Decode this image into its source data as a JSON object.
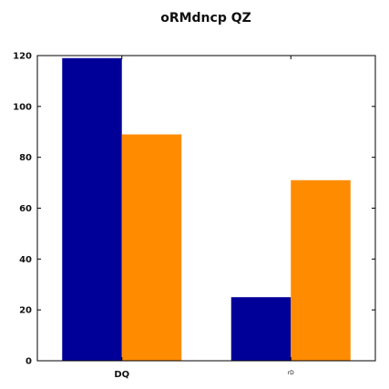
{
  "chart_data": {
    "type": "bar",
    "title": "oRMdncp QZ",
    "xlabel": "",
    "ylabel": "",
    "categories": [
      "DQ",
      "rD"
    ],
    "series": [
      {
        "values": [
          119,
          25
        ]
      },
      {
        "values": [
          89,
          71
        ]
      }
    ],
    "ylim": [
      0,
      120
    ],
    "yticks": [
      0,
      20,
      40,
      60,
      80,
      100,
      120
    ],
    "grid": false,
    "legend": "none",
    "colors": [
      "#000099",
      "#ff8c00"
    ]
  }
}
